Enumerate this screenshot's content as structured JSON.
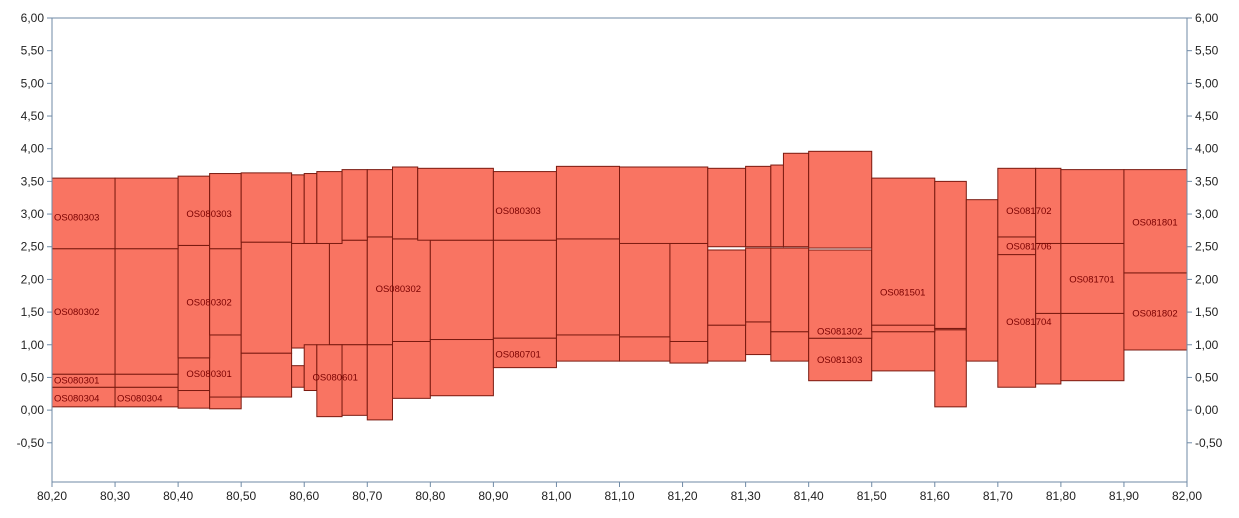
{
  "colors": {
    "fill": "#f97462",
    "stroke": "#7a1a10",
    "axis": "#6f8aa6",
    "label": "#7a0000",
    "tick_text": "#222222"
  },
  "chart_data": {
    "type": "area",
    "title": "",
    "xlabel": "",
    "ylabel": "",
    "xlim": [
      80.2,
      82.0
    ],
    "ylim": [
      -1.1,
      6.0
    ],
    "x_ticks": [
      "80,20",
      "80,30",
      "80,40",
      "80,50",
      "80,60",
      "80,70",
      "80,80",
      "80,90",
      "81,00",
      "81,10",
      "81,20",
      "81,30",
      "81,40",
      "81,50",
      "81,60",
      "81,70",
      "81,80",
      "81,90",
      "82,00"
    ],
    "y_ticks": [
      "6,00",
      "5,50",
      "5,00",
      "4,50",
      "4,00",
      "3,50",
      "3,00",
      "2,50",
      "2,00",
      "1,50",
      "1,00",
      "0,50",
      "0,00",
      "-0,50"
    ],
    "grid": false,
    "series": [
      {
        "name": "OS080304",
        "bands": [
          {
            "x0": 80.2,
            "x1": 80.3,
            "y0": 0.05,
            "y1": 0.35
          },
          {
            "x0": 80.3,
            "x1": 80.4,
            "y0": 0.05,
            "y1": 0.35
          },
          {
            "x0": 80.4,
            "x1": 80.45,
            "y0": 0.03,
            "y1": 0.3
          },
          {
            "x0": 80.45,
            "x1": 80.5,
            "y0": 0.02,
            "y1": 0.2
          }
        ]
      },
      {
        "name": "OS080301",
        "bands": [
          {
            "x0": 80.2,
            "x1": 80.3,
            "y0": 0.35,
            "y1": 0.55
          },
          {
            "x0": 80.3,
            "x1": 80.4,
            "y0": 0.35,
            "y1": 0.55
          },
          {
            "x0": 80.4,
            "x1": 80.45,
            "y0": 0.3,
            "y1": 0.8
          },
          {
            "x0": 80.45,
            "x1": 80.5,
            "y0": 0.2,
            "y1": 1.15
          }
        ]
      },
      {
        "name": "OS080302",
        "bands": [
          {
            "x0": 80.2,
            "x1": 80.3,
            "y0": 0.55,
            "y1": 2.47
          },
          {
            "x0": 80.3,
            "x1": 80.4,
            "y0": 0.55,
            "y1": 2.47
          },
          {
            "x0": 80.4,
            "x1": 80.45,
            "y0": 0.8,
            "y1": 2.52
          },
          {
            "x0": 80.45,
            "x1": 80.5,
            "y0": 1.15,
            "y1": 2.47
          },
          {
            "x0": 80.5,
            "x1": 80.58,
            "y0": 0.87,
            "y1": 2.57
          },
          {
            "x0": 80.58,
            "x1": 80.64,
            "y0": 0.95,
            "y1": 2.55
          },
          {
            "x0": 80.64,
            "x1": 80.7,
            "y0": 1.0,
            "y1": 2.6
          },
          {
            "x0": 80.7,
            "x1": 80.74,
            "y0": 1.0,
            "y1": 2.65
          },
          {
            "x0": 80.74,
            "x1": 80.8,
            "y0": 1.05,
            "y1": 2.62
          },
          {
            "x0": 80.8,
            "x1": 80.9,
            "y0": 1.08,
            "y1": 2.6
          },
          {
            "x0": 80.9,
            "x1": 81.0,
            "y0": 1.1,
            "y1": 2.6
          },
          {
            "x0": 81.0,
            "x1": 81.1,
            "y0": 1.15,
            "y1": 2.62
          },
          {
            "x0": 81.1,
            "x1": 81.18,
            "y0": 1.12,
            "y1": 2.58
          },
          {
            "x0": 81.18,
            "x1": 81.24,
            "y0": 1.05,
            "y1": 2.55
          }
        ]
      },
      {
        "name": "OS080303",
        "bands": [
          {
            "x0": 80.2,
            "x1": 80.3,
            "y0": 2.47,
            "y1": 3.55
          },
          {
            "x0": 80.3,
            "x1": 80.4,
            "y0": 2.47,
            "y1": 3.55
          },
          {
            "x0": 80.4,
            "x1": 80.45,
            "y0": 2.52,
            "y1": 3.58
          },
          {
            "x0": 80.45,
            "x1": 80.5,
            "y0": 2.47,
            "y1": 3.62
          },
          {
            "x0": 80.5,
            "x1": 80.58,
            "y0": 2.57,
            "y1": 3.63
          },
          {
            "x0": 80.58,
            "x1": 80.6,
            "y0": 2.55,
            "y1": 3.6
          },
          {
            "x0": 80.6,
            "x1": 80.62,
            "y0": 2.55,
            "y1": 3.62
          },
          {
            "x0": 80.62,
            "x1": 80.66,
            "y0": 2.55,
            "y1": 3.65
          },
          {
            "x0": 80.66,
            "x1": 80.7,
            "y0": 2.6,
            "y1": 3.68
          },
          {
            "x0": 80.7,
            "x1": 80.74,
            "y0": 2.65,
            "y1": 3.68
          },
          {
            "x0": 80.74,
            "x1": 80.78,
            "y0": 2.62,
            "y1": 3.72
          },
          {
            "x0": 80.78,
            "x1": 80.9,
            "y0": 2.6,
            "y1": 3.7
          },
          {
            "x0": 80.9,
            "x1": 81.0,
            "y0": 2.6,
            "y1": 3.65
          },
          {
            "x0": 81.0,
            "x1": 81.1,
            "y0": 2.62,
            "y1": 3.73
          },
          {
            "x0": 81.1,
            "x1": 81.24,
            "y0": 2.55,
            "y1": 3.72
          },
          {
            "x0": 81.24,
            "x1": 81.3,
            "y0": 2.5,
            "y1": 3.7
          },
          {
            "x0": 81.3,
            "x1": 81.34,
            "y0": 2.5,
            "y1": 3.73
          },
          {
            "x0": 81.34,
            "x1": 81.36,
            "y0": 2.5,
            "y1": 3.75
          },
          {
            "x0": 81.36,
            "x1": 81.4,
            "y0": 2.5,
            "y1": 3.93
          },
          {
            "x0": 81.4,
            "x1": 81.5,
            "y0": 2.48,
            "y1": 3.96
          }
        ]
      },
      {
        "name": "OS080701",
        "bands": [
          {
            "x0": 80.5,
            "x1": 80.58,
            "y0": 0.2,
            "y1": 0.87
          },
          {
            "x0": 80.58,
            "x1": 80.6,
            "y0": 0.35,
            "y1": 0.68
          },
          {
            "x0": 80.74,
            "x1": 80.8,
            "y0": 0.18,
            "y1": 1.05
          },
          {
            "x0": 80.8,
            "x1": 80.9,
            "y0": 0.22,
            "y1": 1.08
          },
          {
            "x0": 80.9,
            "x1": 81.0,
            "y0": 0.65,
            "y1": 1.1
          },
          {
            "x0": 81.0,
            "x1": 81.1,
            "y0": 0.75,
            "y1": 1.15
          },
          {
            "x0": 81.1,
            "x1": 81.18,
            "y0": 0.75,
            "y1": 1.12
          },
          {
            "x0": 81.18,
            "x1": 81.24,
            "y0": 0.72,
            "y1": 1.05
          }
        ]
      },
      {
        "name": "OS080601",
        "bands": [
          {
            "x0": 80.6,
            "x1": 80.62,
            "y0": 0.3,
            "y1": 1.0
          },
          {
            "x0": 80.62,
            "x1": 80.66,
            "y0": -0.1,
            "y1": 1.0
          },
          {
            "x0": 80.66,
            "x1": 80.7,
            "y0": -0.08,
            "y1": 1.0
          },
          {
            "x0": 80.7,
            "x1": 80.74,
            "y0": -0.15,
            "y1": 1.0
          }
        ]
      },
      {
        "name": "OS081303",
        "bands": [
          {
            "x0": 81.24,
            "x1": 81.3,
            "y0": 0.75,
            "y1": 1.3
          },
          {
            "x0": 81.3,
            "x1": 81.34,
            "y0": 0.85,
            "y1": 1.35
          },
          {
            "x0": 81.34,
            "x1": 81.4,
            "y0": 0.75,
            "y1": 1.2
          },
          {
            "x0": 81.4,
            "x1": 81.5,
            "y0": 0.45,
            "y1": 1.1
          },
          {
            "x0": 81.5,
            "x1": 81.6,
            "y0": 0.6,
            "y1": 1.2
          },
          {
            "x0": 81.6,
            "x1": 81.65,
            "y0": 0.05,
            "y1": 1.23
          }
        ]
      },
      {
        "name": "OS081302",
        "bands": [
          {
            "x0": 81.24,
            "x1": 81.3,
            "y0": 1.3,
            "y1": 2.45
          },
          {
            "x0": 81.3,
            "x1": 81.34,
            "y0": 1.35,
            "y1": 2.48
          },
          {
            "x0": 81.34,
            "x1": 81.4,
            "y0": 1.2,
            "y1": 2.48
          },
          {
            "x0": 81.4,
            "x1": 81.5,
            "y0": 1.1,
            "y1": 2.45
          },
          {
            "x0": 81.5,
            "x1": 81.6,
            "y0": 1.2,
            "y1": 1.3
          },
          {
            "x0": 81.6,
            "x1": 81.65,
            "y0": 1.23,
            "y1": 1.25
          }
        ]
      },
      {
        "name": "OS081501",
        "bands": [
          {
            "x0": 81.5,
            "x1": 81.6,
            "y0": 1.3,
            "y1": 3.55
          },
          {
            "x0": 81.6,
            "x1": 81.65,
            "y0": 1.25,
            "y1": 3.5
          }
        ]
      },
      {
        "name": "",
        "bands": [
          {
            "x0": 81.65,
            "x1": 81.7,
            "y0": 0.75,
            "y1": 3.22
          }
        ]
      },
      {
        "name": "OS081704",
        "bands": [
          {
            "x0": 81.7,
            "x1": 81.76,
            "y0": 0.35,
            "y1": 2.38
          },
          {
            "x0": 81.76,
            "x1": 81.8,
            "y0": 0.4,
            "y1": 1.48
          },
          {
            "x0": 81.8,
            "x1": 81.9,
            "y0": 0.45,
            "y1": 1.48
          }
        ]
      },
      {
        "name": "OS081706",
        "bands": [
          {
            "x0": 81.7,
            "x1": 81.76,
            "y0": 2.38,
            "y1": 2.65
          }
        ]
      },
      {
        "name": "OS081701",
        "bands": [
          {
            "x0": 81.76,
            "x1": 81.8,
            "y0": 1.48,
            "y1": 2.55
          },
          {
            "x0": 81.8,
            "x1": 81.9,
            "y0": 1.48,
            "y1": 2.55
          }
        ]
      },
      {
        "name": "OS081702",
        "bands": [
          {
            "x0": 81.7,
            "x1": 81.76,
            "y0": 2.65,
            "y1": 3.7
          },
          {
            "x0": 81.76,
            "x1": 81.8,
            "y0": 2.55,
            "y1": 3.7
          },
          {
            "x0": 81.8,
            "x1": 81.9,
            "y0": 2.55,
            "y1": 3.68
          }
        ]
      },
      {
        "name": "OS081802",
        "bands": [
          {
            "x0": 81.9,
            "x1": 82.0,
            "y0": 0.92,
            "y1": 2.1
          }
        ]
      },
      {
        "name": "OS081801",
        "bands": [
          {
            "x0": 81.9,
            "x1": 82.0,
            "y0": 2.1,
            "y1": 3.68
          }
        ]
      }
    ],
    "labels": [
      {
        "text": "OS080303",
        "x": 80.2,
        "y": 2.95
      },
      {
        "text": "OS080303",
        "x": 80.41,
        "y": 3.0
      },
      {
        "text": "OS080303",
        "x": 80.9,
        "y": 3.05
      },
      {
        "text": "OS080302",
        "x": 80.2,
        "y": 1.5
      },
      {
        "text": "OS080302",
        "x": 80.41,
        "y": 1.65
      },
      {
        "text": "OS080302",
        "x": 80.71,
        "y": 1.85
      },
      {
        "text": "OS080301",
        "x": 80.2,
        "y": 0.45
      },
      {
        "text": "OS080304",
        "x": 80.2,
        "y": 0.18
      },
      {
        "text": "OS080304",
        "x": 80.3,
        "y": 0.18
      },
      {
        "text": "OS080301",
        "x": 80.41,
        "y": 0.55
      },
      {
        "text": "OS080601",
        "x": 80.61,
        "y": 0.5
      },
      {
        "text": "OS080701",
        "x": 80.9,
        "y": 0.85
      },
      {
        "text": "OS081302",
        "x": 81.41,
        "y": 1.2
      },
      {
        "text": "OS081303",
        "x": 81.41,
        "y": 0.77
      },
      {
        "text": "OS081501",
        "x": 81.51,
        "y": 1.8
      },
      {
        "text": "OS081702",
        "x": 81.71,
        "y": 3.05
      },
      {
        "text": "OS081706",
        "x": 81.71,
        "y": 2.5
      },
      {
        "text": "OS081701",
        "x": 81.81,
        "y": 2.0
      },
      {
        "text": "OS081704",
        "x": 81.71,
        "y": 1.35
      },
      {
        "text": "OS081801",
        "x": 81.91,
        "y": 2.87
      },
      {
        "text": "OS081802",
        "x": 81.91,
        "y": 1.48
      }
    ]
  }
}
